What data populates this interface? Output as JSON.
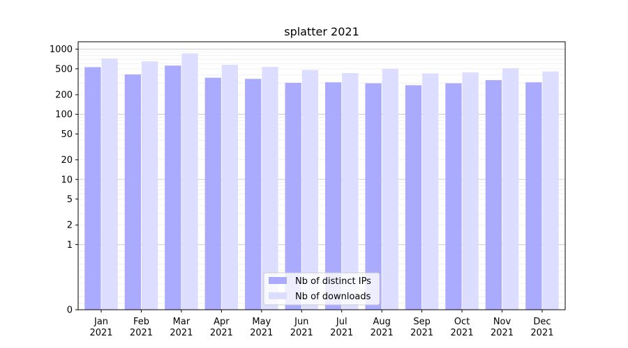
{
  "chart_data": {
    "type": "bar",
    "title": "splatter 2021",
    "xlabel": "",
    "ylabel": "",
    "yscale": "symlog",
    "ylim": [
      0,
      1300
    ],
    "y_ticks": [
      0,
      1,
      2,
      5,
      10,
      20,
      50,
      100,
      200,
      500,
      1000
    ],
    "y_tick_labels": [
      "0",
      "1",
      "2",
      "5",
      "10",
      "20",
      "50",
      "100",
      "200",
      "500",
      "1000"
    ],
    "grid": true,
    "legend_position": "bottom-center",
    "categories": [
      [
        "Jan",
        "2021"
      ],
      [
        "Feb",
        "2021"
      ],
      [
        "Mar",
        "2021"
      ],
      [
        "Apr",
        "2021"
      ],
      [
        "May",
        "2021"
      ],
      [
        "Jun",
        "2021"
      ],
      [
        "Jul",
        "2021"
      ],
      [
        "Aug",
        "2021"
      ],
      [
        "Sep",
        "2021"
      ],
      [
        "Oct",
        "2021"
      ],
      [
        "Nov",
        "2021"
      ],
      [
        "Dec",
        "2021"
      ]
    ],
    "series": [
      {
        "name": "Nb of distinct IPs",
        "color": "#aaaaff",
        "values": [
          530,
          410,
          560,
          365,
          350,
          305,
          310,
          300,
          280,
          300,
          335,
          310
        ]
      },
      {
        "name": "Nb of downloads",
        "color": "#ddddff",
        "values": [
          720,
          650,
          860,
          575,
          535,
          480,
          430,
          500,
          425,
          440,
          510,
          455
        ]
      }
    ]
  }
}
